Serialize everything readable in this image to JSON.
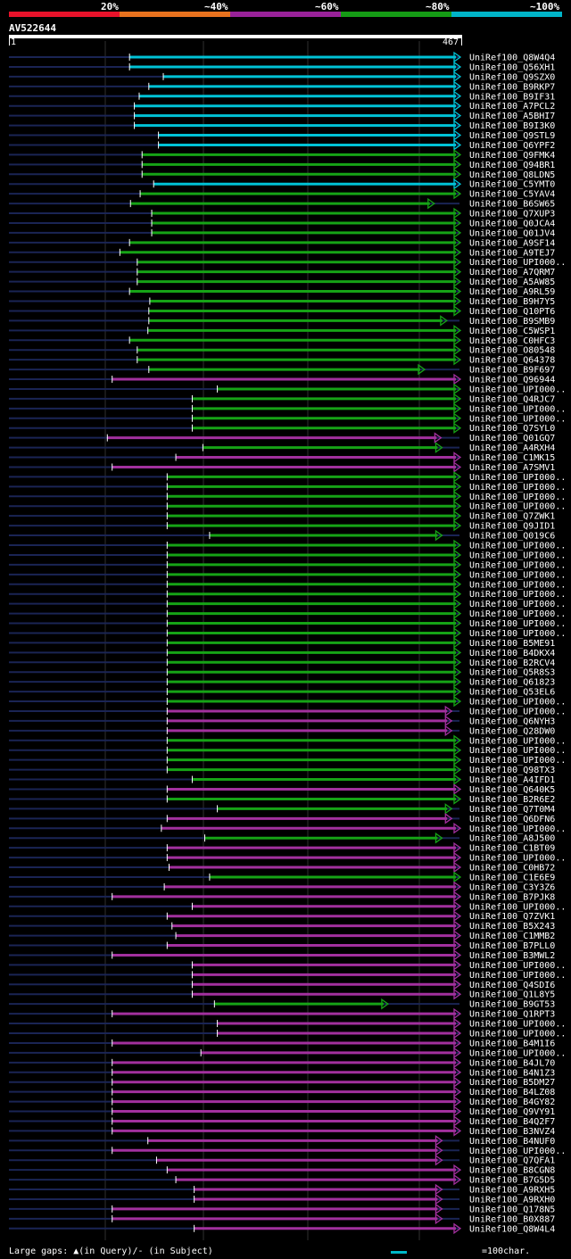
{
  "legend": {
    "labels": [
      "20%",
      "~40%",
      "~60%",
      "~80%",
      "~100%"
    ],
    "colors": [
      "#e8122a",
      "#e8721e",
      "#992299",
      "#159b15",
      "#00b4c8"
    ]
  },
  "query": {
    "name": "AV522644",
    "start": "1",
    "end": "467"
  },
  "footer": {
    "left": "Large gaps: ▲(in Query)/- (in Subject)",
    "right": "=100char."
  },
  "chart_data": {
    "type": "alignment",
    "query_length": 467,
    "rows": [
      {
        "label": "UniRef100_Q8W4Q4",
        "color": "cyan",
        "start": 125,
        "end": 467
      },
      {
        "label": "UniRef100_Q56XH1",
        "color": "cyan",
        "start": 125,
        "end": 467
      },
      {
        "label": "UniRef100_Q9SZX0",
        "color": "cyan",
        "start": 160,
        "end": 467
      },
      {
        "label": "UniRef100_B9RKP7",
        "color": "cyan",
        "start": 145,
        "end": 467
      },
      {
        "label": "UniRef100_B9IF31",
        "color": "cyan",
        "start": 135,
        "end": 467
      },
      {
        "label": "UniRef100_A7PCL2",
        "color": "cyan",
        "start": 130,
        "end": 467
      },
      {
        "label": "UniRef100_A5BHI7",
        "color": "cyan",
        "start": 130,
        "end": 467
      },
      {
        "label": "UniRef100_B9I3K0",
        "color": "cyan",
        "start": 130,
        "end": 467
      },
      {
        "label": "UniRef100_Q9STL9",
        "color": "cyan",
        "start": 155,
        "end": 467
      },
      {
        "label": "UniRef100_Q6YPF2",
        "color": "cyan",
        "start": 155,
        "end": 467
      },
      {
        "label": "UniRef100_Q9FMK4",
        "color": "green",
        "start": 138,
        "end": 467
      },
      {
        "label": "UniRef100_Q94BR1",
        "color": "green",
        "start": 138,
        "end": 467
      },
      {
        "label": "UniRef100_Q8LDN5",
        "color": "green",
        "start": 138,
        "end": 467
      },
      {
        "label": "UniRef100_C5YMT0",
        "color": "cyan",
        "start": 150,
        "end": 467
      },
      {
        "label": "UniRef100_C5YAV4",
        "color": "green",
        "start": 136,
        "end": 467
      },
      {
        "label": "UniRef100_B6SW65",
        "color": "green",
        "start": 126,
        "end": 440
      },
      {
        "label": "UniRef100_Q7XUP3",
        "color": "green",
        "start": 148,
        "end": 467
      },
      {
        "label": "UniRef100_Q0JCA4",
        "color": "green",
        "start": 148,
        "end": 467
      },
      {
        "label": "UniRef100_Q01JV4",
        "color": "green",
        "start": 148,
        "end": 467
      },
      {
        "label": "UniRef100_A9SF14",
        "color": "green",
        "start": 125,
        "end": 467
      },
      {
        "label": "UniRef100_A9TEJ7",
        "color": "green",
        "start": 115,
        "end": 467
      },
      {
        "label": "UniRef100_UPI000..",
        "color": "green",
        "start": 133,
        "end": 467
      },
      {
        "label": "UniRef100_A7QRM7",
        "color": "green",
        "start": 133,
        "end": 467
      },
      {
        "label": "UniRef100_A5AW85",
        "color": "green",
        "start": 133,
        "end": 467
      },
      {
        "label": "UniRef100_A9RL59",
        "color": "green",
        "start": 125,
        "end": 467
      },
      {
        "label": "UniRef100_B9H7Y5",
        "color": "green",
        "start": 146,
        "end": 467
      },
      {
        "label": "UniRef100_Q10PT6",
        "color": "green",
        "start": 145,
        "end": 467
      },
      {
        "label": "UniRef100_B9SMB9",
        "color": "green",
        "start": 145,
        "end": 453
      },
      {
        "label": "UniRef100_C5WSP1",
        "color": "green",
        "start": 144,
        "end": 467
      },
      {
        "label": "UniRef100_C0HFC3",
        "color": "green",
        "start": 125,
        "end": 467
      },
      {
        "label": "UniRef100_O80548",
        "color": "green",
        "start": 133,
        "end": 467
      },
      {
        "label": "UniRef100_Q64378",
        "color": "green",
        "start": 133,
        "end": 467
      },
      {
        "label": "UniRef100_B9F697",
        "color": "green",
        "start": 145,
        "end": 430
      },
      {
        "label": "UniRef100_Q96944",
        "color": "magenta",
        "start": 107,
        "end": 467
      },
      {
        "label": "UniRef100_UPI000..",
        "color": "green",
        "start": 216,
        "end": 467
      },
      {
        "label": "UniRef100_Q4RJC7",
        "color": "green",
        "start": 190,
        "end": 467
      },
      {
        "label": "UniRef100_UPI000..",
        "color": "green",
        "start": 190,
        "end": 467
      },
      {
        "label": "UniRef100_UPI000..",
        "color": "green",
        "start": 190,
        "end": 467
      },
      {
        "label": "UniRef100_Q7SYL0",
        "color": "green",
        "start": 190,
        "end": 467
      },
      {
        "label": "UniRef100_Q01GQ7",
        "color": "magenta",
        "start": 102,
        "end": 447
      },
      {
        "label": "UniRef100_A4RXH4",
        "color": "green",
        "start": 201,
        "end": 448
      },
      {
        "label": "UniRef100_C1MK15",
        "color": "magenta",
        "start": 173,
        "end": 467
      },
      {
        "label": "UniRef100_A7SMV1",
        "color": "magenta",
        "start": 107,
        "end": 467
      },
      {
        "label": "UniRef100_UPI000..",
        "color": "green",
        "start": 164,
        "end": 467
      },
      {
        "label": "UniRef100_UPI000..",
        "color": "green",
        "start": 164,
        "end": 467
      },
      {
        "label": "UniRef100_UPI000..",
        "color": "green",
        "start": 164,
        "end": 467
      },
      {
        "label": "UniRef100_UPI000..",
        "color": "green",
        "start": 164,
        "end": 467
      },
      {
        "label": "UniRef100_Q7ZWK1",
        "color": "green",
        "start": 164,
        "end": 467
      },
      {
        "label": "UniRef100_Q9JID1",
        "color": "green",
        "start": 164,
        "end": 467
      },
      {
        "label": "UniRef100_Q019C6",
        "color": "green",
        "start": 208,
        "end": 448
      },
      {
        "label": "UniRef100_UPI000..",
        "color": "green",
        "start": 164,
        "end": 467
      },
      {
        "label": "UniRef100_UPI000..",
        "color": "green",
        "start": 164,
        "end": 467
      },
      {
        "label": "UniRef100_UPI000..",
        "color": "green",
        "start": 164,
        "end": 467
      },
      {
        "label": "UniRef100_UPI000..",
        "color": "green",
        "start": 164,
        "end": 467
      },
      {
        "label": "UniRef100_UPI000..",
        "color": "green",
        "start": 164,
        "end": 467
      },
      {
        "label": "UniRef100_UPI000..",
        "color": "green",
        "start": 164,
        "end": 467
      },
      {
        "label": "UniRef100_UPI000..",
        "color": "green",
        "start": 164,
        "end": 467
      },
      {
        "label": "UniRef100_UPI000..",
        "color": "green",
        "start": 164,
        "end": 467
      },
      {
        "label": "UniRef100_UPI000..",
        "color": "green",
        "start": 164,
        "end": 467
      },
      {
        "label": "UniRef100_UPI000..",
        "color": "green",
        "start": 164,
        "end": 467
      },
      {
        "label": "UniRef100_B5ME91",
        "color": "green",
        "start": 164,
        "end": 467
      },
      {
        "label": "UniRef100_B4DKX4",
        "color": "green",
        "start": 164,
        "end": 467
      },
      {
        "label": "UniRef100_B2RCV4",
        "color": "green",
        "start": 164,
        "end": 467
      },
      {
        "label": "UniRef100_Q5R8S3",
        "color": "green",
        "start": 164,
        "end": 467
      },
      {
        "label": "UniRef100_Q61823",
        "color": "green",
        "start": 164,
        "end": 467
      },
      {
        "label": "UniRef100_Q53EL6",
        "color": "green",
        "start": 164,
        "end": 467
      },
      {
        "label": "UniRef100_UPI000..",
        "color": "green",
        "start": 164,
        "end": 467
      },
      {
        "label": "UniRef100_UPI000..",
        "color": "magenta",
        "start": 164,
        "end": 458
      },
      {
        "label": "UniRef100_Q6NYH3",
        "color": "magenta",
        "start": 164,
        "end": 458
      },
      {
        "label": "UniRef100_Q28DW0",
        "color": "magenta",
        "start": 164,
        "end": 458
      },
      {
        "label": "UniRef100_UPI000..",
        "color": "green",
        "start": 164,
        "end": 467
      },
      {
        "label": "UniRef100_UPI000..",
        "color": "green",
        "start": 164,
        "end": 467
      },
      {
        "label": "UniRef100_UPI000..",
        "color": "green",
        "start": 164,
        "end": 467
      },
      {
        "label": "UniRef100_Q98TX3",
        "color": "green",
        "start": 164,
        "end": 467
      },
      {
        "label": "UniRef100_A4IFD1",
        "color": "green",
        "start": 190,
        "end": 467
      },
      {
        "label": "UniRef100_Q640K5",
        "color": "magenta",
        "start": 164,
        "end": 467
      },
      {
        "label": "UniRef100_B2R6E2",
        "color": "green",
        "start": 164,
        "end": 467
      },
      {
        "label": "UniRef100_Q7T0M4",
        "color": "green",
        "start": 216,
        "end": 458
      },
      {
        "label": "UniRef100_Q6DFN6",
        "color": "magenta",
        "start": 164,
        "end": 458
      },
      {
        "label": "UniRef100_UPI000..",
        "color": "magenta",
        "start": 158,
        "end": 467
      },
      {
        "label": "UniRef100_A8J500",
        "color": "green",
        "start": 203,
        "end": 448
      },
      {
        "label": "UniRef100_C1BT09",
        "color": "magenta",
        "start": 164,
        "end": 467
      },
      {
        "label": "UniRef100_UPI000..",
        "color": "magenta",
        "start": 164,
        "end": 467
      },
      {
        "label": "UniRef100_C0HB72",
        "color": "magenta",
        "start": 166,
        "end": 467
      },
      {
        "label": "UniRef100_C1E6E9",
        "color": "green",
        "start": 208,
        "end": 467
      },
      {
        "label": "UniRef100_C3Y3Z6",
        "color": "magenta",
        "start": 161,
        "end": 467
      },
      {
        "label": "UniRef100_B7PJK8",
        "color": "magenta",
        "start": 107,
        "end": 467
      },
      {
        "label": "UniRef100_UPI000..",
        "color": "magenta",
        "start": 190,
        "end": 467
      },
      {
        "label": "UniRef100_Q7ZVK1",
        "color": "magenta",
        "start": 164,
        "end": 467
      },
      {
        "label": "UniRef100_B5X243",
        "color": "magenta",
        "start": 169,
        "end": 467
      },
      {
        "label": "UniRef100_C1MMB2",
        "color": "magenta",
        "start": 173,
        "end": 467
      },
      {
        "label": "UniRef100_B7PLL0",
        "color": "magenta",
        "start": 164,
        "end": 467
      },
      {
        "label": "UniRef100_B3MWL2",
        "color": "magenta",
        "start": 107,
        "end": 467
      },
      {
        "label": "UniRef100_UPI000..",
        "color": "magenta",
        "start": 190,
        "end": 467
      },
      {
        "label": "UniRef100_UPI000..",
        "color": "magenta",
        "start": 190,
        "end": 467
      },
      {
        "label": "UniRef100_Q4SDI6",
        "color": "magenta",
        "start": 190,
        "end": 467
      },
      {
        "label": "UniRef100_Q1L8Y5",
        "color": "magenta",
        "start": 190,
        "end": 467
      },
      {
        "label": "UniRef100_B9GT53",
        "color": "green",
        "start": 213,
        "end": 392
      },
      {
        "label": "UniRef100_Q1RPT3",
        "color": "magenta",
        "start": 107,
        "end": 467
      },
      {
        "label": "UniRef100_UPI000..",
        "color": "magenta",
        "start": 216,
        "end": 467
      },
      {
        "label": "UniRef100_UPI000..",
        "color": "magenta",
        "start": 216,
        "end": 467
      },
      {
        "label": "UniRef100_B4M1I6",
        "color": "magenta",
        "start": 107,
        "end": 467
      },
      {
        "label": "UniRef100_UPI000..",
        "color": "magenta",
        "start": 199,
        "end": 467
      },
      {
        "label": "UniRef100_B4JL70",
        "color": "magenta",
        "start": 107,
        "end": 467
      },
      {
        "label": "UniRef100_B4N1Z3",
        "color": "magenta",
        "start": 107,
        "end": 467
      },
      {
        "label": "UniRef100_B5DM27",
        "color": "magenta",
        "start": 107,
        "end": 467
      },
      {
        "label": "UniRef100_B4LZ08",
        "color": "magenta",
        "start": 107,
        "end": 467
      },
      {
        "label": "UniRef100_B4GY82",
        "color": "magenta",
        "start": 107,
        "end": 467
      },
      {
        "label": "UniRef100_Q9VY91",
        "color": "magenta",
        "start": 107,
        "end": 467
      },
      {
        "label": "UniRef100_B4Q2F7",
        "color": "magenta",
        "start": 107,
        "end": 467
      },
      {
        "label": "UniRef100_B3NVZ4",
        "color": "magenta",
        "start": 107,
        "end": 467
      },
      {
        "label": "UniRef100_B4NUF0",
        "color": "magenta",
        "start": 144,
        "end": 448
      },
      {
        "label": "UniRef100_UPI000..",
        "color": "magenta",
        "start": 107,
        "end": 448
      },
      {
        "label": "UniRef100_Q7QFA1",
        "color": "magenta",
        "start": 153,
        "end": 448
      },
      {
        "label": "UniRef100_B8CGN8",
        "color": "magenta",
        "start": 164,
        "end": 467
      },
      {
        "label": "UniRef100_B7G5D5",
        "color": "magenta",
        "start": 173,
        "end": 467
      },
      {
        "label": "UniRef100_A9RXH5",
        "color": "magenta",
        "start": 192,
        "end": 448
      },
      {
        "label": "UniRef100_A9RXH0",
        "color": "magenta",
        "start": 192,
        "end": 448
      },
      {
        "label": "UniRef100_Q178N5",
        "color": "magenta",
        "start": 107,
        "end": 448
      },
      {
        "label": "UniRef100_B0X887",
        "color": "magenta",
        "start": 107,
        "end": 448
      },
      {
        "label": "UniRef100_Q8W4L4",
        "color": "magenta",
        "start": 192,
        "end": 467
      }
    ]
  }
}
